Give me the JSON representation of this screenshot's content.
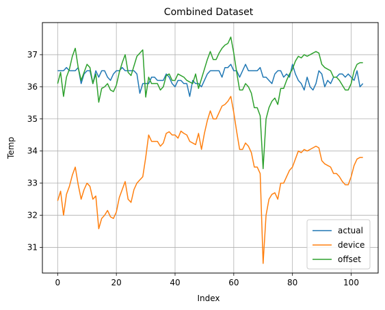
{
  "chart_data": {
    "type": "line",
    "title": "Combined Dataset",
    "xlabel": "Index",
    "ylabel": "Temp",
    "xlim": [
      -5.2,
      109.2
    ],
    "ylim": [
      30.2,
      38.0
    ],
    "xticks": [
      0,
      20,
      40,
      60,
      80,
      100
    ],
    "yticks": [
      31,
      32,
      33,
      34,
      35,
      36,
      37
    ],
    "grid": true,
    "legend_position": "lower right",
    "x": [
      0,
      1,
      2,
      3,
      4,
      5,
      6,
      7,
      8,
      9,
      10,
      11,
      12,
      13,
      14,
      15,
      16,
      17,
      18,
      19,
      20,
      21,
      22,
      23,
      24,
      25,
      26,
      27,
      28,
      29,
      30,
      31,
      32,
      33,
      34,
      35,
      36,
      37,
      38,
      39,
      40,
      41,
      42,
      43,
      44,
      45,
      46,
      47,
      48,
      49,
      50,
      51,
      52,
      53,
      54,
      55,
      56,
      57,
      58,
      59,
      60,
      61,
      62,
      63,
      64,
      65,
      66,
      67,
      68,
      69,
      70,
      71,
      72,
      73,
      74,
      75,
      76,
      77,
      78,
      79,
      80,
      81,
      82,
      83,
      84,
      85,
      86,
      87,
      88,
      89,
      90,
      91,
      92,
      93,
      94,
      95,
      96,
      97,
      98,
      99,
      100,
      101,
      102,
      103,
      104
    ],
    "series": [
      {
        "name": "actual",
        "color": "#1f77b4",
        "values": [
          36.5,
          36.5,
          36.5,
          36.6,
          36.5,
          36.5,
          36.5,
          36.6,
          36.1,
          36.4,
          36.5,
          36.5,
          36.1,
          36.5,
          36.3,
          36.5,
          36.5,
          36.3,
          36.2,
          36.4,
          36.5,
          36.5,
          36.6,
          36.5,
          36.5,
          36.5,
          36.5,
          36.4,
          35.8,
          36.1,
          36.1,
          36.1,
          36.3,
          36.3,
          36.2,
          36.2,
          36.2,
          36.4,
          36.3,
          36.1,
          36.0,
          36.2,
          36.2,
          36.1,
          36.1,
          35.7,
          36.2,
          36.1,
          36.1,
          36.0,
          36.2,
          36.4,
          36.5,
          36.5,
          36.5,
          36.5,
          36.3,
          36.6,
          36.6,
          36.7,
          36.5,
          36.5,
          36.3,
          36.5,
          36.7,
          36.5,
          36.5,
          36.5,
          36.5,
          36.6,
          36.3,
          36.3,
          36.2,
          36.1,
          36.4,
          36.5,
          36.5,
          36.3,
          36.4,
          36.3,
          36.7,
          36.4,
          36.2,
          36.1,
          35.9,
          36.3,
          36.0,
          35.9,
          36.1,
          36.5,
          36.4,
          36.0,
          36.2,
          36.1,
          36.3,
          36.3,
          36.4,
          36.4,
          36.3,
          36.4,
          36.3,
          36.2,
          36.5,
          36.0,
          36.1
        ]
      },
      {
        "name": "device",
        "color": "#ff7f0e",
        "values": [
          32.45,
          32.75,
          32.0,
          32.65,
          32.9,
          33.25,
          33.5,
          32.95,
          32.5,
          32.8,
          33.0,
          32.9,
          32.5,
          32.6,
          31.58,
          31.9,
          32.0,
          32.15,
          31.95,
          31.9,
          32.1,
          32.55,
          32.8,
          33.05,
          32.5,
          32.4,
          32.8,
          33.0,
          33.1,
          33.2,
          33.8,
          34.5,
          34.3,
          34.3,
          34.3,
          34.15,
          34.25,
          34.55,
          34.6,
          34.5,
          34.5,
          34.4,
          34.62,
          34.55,
          34.5,
          34.3,
          34.25,
          34.2,
          34.55,
          34.05,
          34.55,
          34.95,
          35.25,
          35.0,
          35.0,
          35.2,
          35.4,
          35.45,
          35.55,
          35.7,
          35.2,
          34.6,
          34.05,
          34.05,
          34.25,
          34.15,
          33.95,
          33.5,
          33.5,
          33.3,
          30.5,
          32.0,
          32.5,
          32.65,
          32.7,
          32.5,
          33.0,
          33.0,
          33.2,
          33.4,
          33.5,
          33.75,
          34.0,
          33.95,
          34.05,
          34.0,
          34.05,
          34.1,
          34.15,
          34.1,
          33.7,
          33.6,
          33.55,
          33.5,
          33.3,
          33.3,
          33.2,
          33.05,
          32.95,
          32.95,
          33.2,
          33.55,
          33.75,
          33.8,
          33.8
        ]
      },
      {
        "name": "offset",
        "color": "#2ca02c",
        "values": [
          36.1,
          36.45,
          35.7,
          36.3,
          36.55,
          36.95,
          37.2,
          36.6,
          36.2,
          36.45,
          36.7,
          36.6,
          36.1,
          36.4,
          35.52,
          35.95,
          36.0,
          36.1,
          35.9,
          35.85,
          36.05,
          36.45,
          36.75,
          37.0,
          36.45,
          36.35,
          36.65,
          36.95,
          37.05,
          37.15,
          35.68,
          36.3,
          36.1,
          36.1,
          36.1,
          35.9,
          36.0,
          36.35,
          36.4,
          36.2,
          36.2,
          36.4,
          36.35,
          36.3,
          36.2,
          36.15,
          36.1,
          36.4,
          35.95,
          36.25,
          36.55,
          36.85,
          37.1,
          36.85,
          36.85,
          37.05,
          37.2,
          37.3,
          37.35,
          37.55,
          37.05,
          36.45,
          35.9,
          35.9,
          36.1,
          36.0,
          35.8,
          35.35,
          35.35,
          35.1,
          33.45,
          35.0,
          35.35,
          35.55,
          35.65,
          35.45,
          35.95,
          35.95,
          36.2,
          36.4,
          36.55,
          36.8,
          36.95,
          36.9,
          37.0,
          36.95,
          37.0,
          37.05,
          37.1,
          37.05,
          36.7,
          36.6,
          36.55,
          36.5,
          36.3,
          36.3,
          36.2,
          36.05,
          35.9,
          35.9,
          36.1,
          36.5,
          36.7,
          36.75,
          36.75
        ]
      }
    ]
  }
}
